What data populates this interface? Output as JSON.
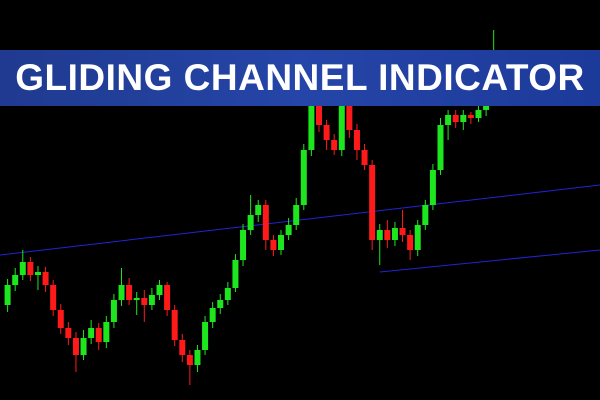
{
  "chart_data": {
    "type": "candlestick",
    "title": "GLIDING CHANNEL INDICATOR",
    "ylim": [
      0,
      400
    ],
    "xlim": [
      -1,
      78
    ],
    "up_color": "#1ee61e",
    "down_color": "#ff1a1a",
    "open": [
      95,
      115,
      125,
      138,
      125,
      128,
      115,
      90,
      72,
      62,
      45,
      62,
      72,
      58,
      78,
      100,
      115,
      100,
      102,
      95,
      105,
      115,
      90,
      60,
      45,
      35,
      50,
      78,
      92,
      100,
      112,
      140,
      170,
      185,
      195,
      160,
      150,
      165,
      175,
      195,
      250,
      300,
      275,
      260,
      250,
      300,
      270,
      250,
      235,
      160,
      170,
      160,
      172,
      165,
      150,
      175,
      195,
      230,
      275,
      285,
      278,
      285,
      282,
      290,
      315
    ],
    "high": [
      121,
      132,
      150,
      143,
      134,
      133,
      120,
      96,
      78,
      68,
      70,
      80,
      77,
      84,
      106,
      132,
      122,
      108,
      110,
      112,
      120,
      118,
      95,
      66,
      50,
      55,
      84,
      98,
      106,
      118,
      146,
      176,
      205,
      200,
      200,
      165,
      170,
      182,
      202,
      256,
      320,
      305,
      280,
      266,
      318,
      304,
      276,
      256,
      240,
      176,
      180,
      178,
      190,
      170,
      180,
      200,
      236,
      282,
      290,
      290,
      290,
      288,
      296,
      325,
      370
    ],
    "low": [
      88,
      109,
      120,
      119,
      110,
      108,
      84,
      66,
      55,
      28,
      40,
      56,
      50,
      52,
      72,
      94,
      95,
      85,
      78,
      90,
      100,
      84,
      54,
      38,
      15,
      28,
      45,
      72,
      86,
      95,
      108,
      134,
      165,
      178,
      150,
      144,
      145,
      160,
      170,
      190,
      244,
      268,
      250,
      245,
      244,
      262,
      240,
      230,
      150,
      135,
      152,
      154,
      158,
      140,
      144,
      170,
      190,
      225,
      260,
      272,
      270,
      276,
      278,
      284,
      310
    ],
    "close": [
      115,
      125,
      138,
      125,
      128,
      115,
      90,
      72,
      62,
      45,
      62,
      72,
      58,
      78,
      100,
      115,
      100,
      102,
      95,
      105,
      115,
      90,
      60,
      45,
      35,
      50,
      78,
      92,
      100,
      112,
      140,
      170,
      185,
      195,
      160,
      150,
      165,
      175,
      195,
      250,
      300,
      275,
      260,
      250,
      300,
      270,
      250,
      235,
      160,
      170,
      160,
      172,
      165,
      150,
      175,
      195,
      230,
      275,
      285,
      278,
      285,
      282,
      290,
      315,
      330
    ],
    "lines": [
      {
        "color": "#2323d8",
        "x": [
          -1,
          78
        ],
        "values": [
          145,
          215
        ]
      },
      {
        "color": "#2323d8",
        "x": [
          49,
          78
        ],
        "values": [
          128,
          150
        ]
      }
    ]
  }
}
